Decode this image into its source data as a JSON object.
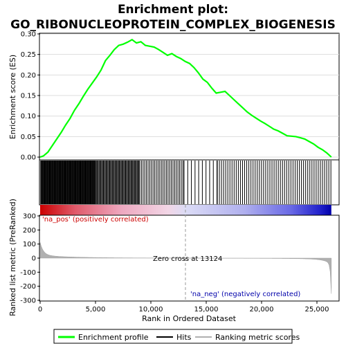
{
  "chart_data": {
    "type": "line",
    "title_line1": "Enrichment plot:",
    "title_line2": "GO_RIBONUCLEOPROTEIN_COMPLEX_BIOGENESIS",
    "es_ylabel": "Enrichment score (ES)",
    "rank_ylabel": "Ranked list metric (PreRanked)",
    "xlabel": "Rank in Ordered Dataset",
    "xlim": [
      0,
      27000
    ],
    "x_ticks": [
      "0",
      "5,000",
      "10,000",
      "15,000",
      "20,000",
      "25,000"
    ],
    "x_tick_values": [
      0,
      5000,
      10000,
      15000,
      20000,
      25000
    ],
    "es_ylim": [
      -0.005,
      0.3
    ],
    "es_ticks": [
      "0.00",
      "0.05",
      "0.10",
      "0.15",
      "0.20",
      "0.25",
      "0.30"
    ],
    "es_tick_values": [
      0,
      0.05,
      0.1,
      0.15,
      0.2,
      0.25,
      0.3
    ],
    "rank_ylim": [
      -300,
      300
    ],
    "rank_ticks": [
      "300",
      "200",
      "100",
      "0",
      "-100",
      "-200",
      "-300"
    ],
    "rank_tick_values": [
      300,
      200,
      100,
      0,
      -100,
      -200,
      -300
    ],
    "pos_label": "'na_pos' (positively correlated)",
    "neg_label": "'na_neg' (negatively correlated)",
    "zero_cross_label": "Zero cross at 13124",
    "zero_cross": 13124,
    "n_genes": 26300,
    "es_profile": {
      "x": [
        0,
        300,
        700,
        1100,
        1500,
        1900,
        2300,
        2700,
        3100,
        3500,
        3900,
        4300,
        4700,
        5100,
        5500,
        5900,
        6300,
        6700,
        7100,
        7500,
        7900,
        8300,
        8700,
        9100,
        9500,
        9900,
        10300,
        10700,
        11100,
        11500,
        11900,
        12300,
        12700,
        13100,
        13500,
        13900,
        14300,
        14700,
        15100,
        15500,
        15900,
        16300,
        16700,
        17100,
        17500,
        17900,
        18300,
        18700,
        19100,
        19500,
        19900,
        20300,
        20700,
        21100,
        21500,
        21900,
        22300,
        22700,
        23100,
        23500,
        23900,
        24300,
        24700,
        25100,
        25500,
        25900,
        26300
      ],
      "y": [
        0.0,
        0.003,
        0.012,
        0.028,
        0.044,
        0.06,
        0.078,
        0.094,
        0.114,
        0.13,
        0.148,
        0.165,
        0.18,
        0.195,
        0.212,
        0.235,
        0.248,
        0.262,
        0.272,
        0.275,
        0.28,
        0.286,
        0.278,
        0.281,
        0.272,
        0.27,
        0.268,
        0.262,
        0.255,
        0.248,
        0.252,
        0.245,
        0.24,
        0.233,
        0.228,
        0.218,
        0.205,
        0.19,
        0.182,
        0.168,
        0.156,
        0.158,
        0.16,
        0.15,
        0.14,
        0.13,
        0.12,
        0.11,
        0.102,
        0.095,
        0.088,
        0.082,
        0.075,
        0.068,
        0.064,
        0.058,
        0.052,
        0.051,
        0.05,
        0.047,
        0.044,
        0.038,
        0.032,
        0.024,
        0.018,
        0.01,
        0.0
      ]
    },
    "hits": [
      {
        "start": 50,
        "end": 5000,
        "step": 55
      },
      {
        "start": 5000,
        "end": 9000,
        "step": 80
      },
      {
        "start": 9000,
        "end": 13000,
        "step": 150
      },
      {
        "start": 13000,
        "end": 16000,
        "step": 330
      },
      {
        "start": 16000,
        "end": 26300,
        "step": 190
      }
    ],
    "legend": [
      "Enrichment profile",
      "Hits",
      "Ranking metric scores"
    ],
    "colors": {
      "es_line": "#00ff00",
      "hit": "#000000",
      "metric_fill": "#b0b0b0",
      "pos_text": "#cc0000",
      "neg_text": "#0000aa",
      "zero_line": "#999999"
    }
  }
}
